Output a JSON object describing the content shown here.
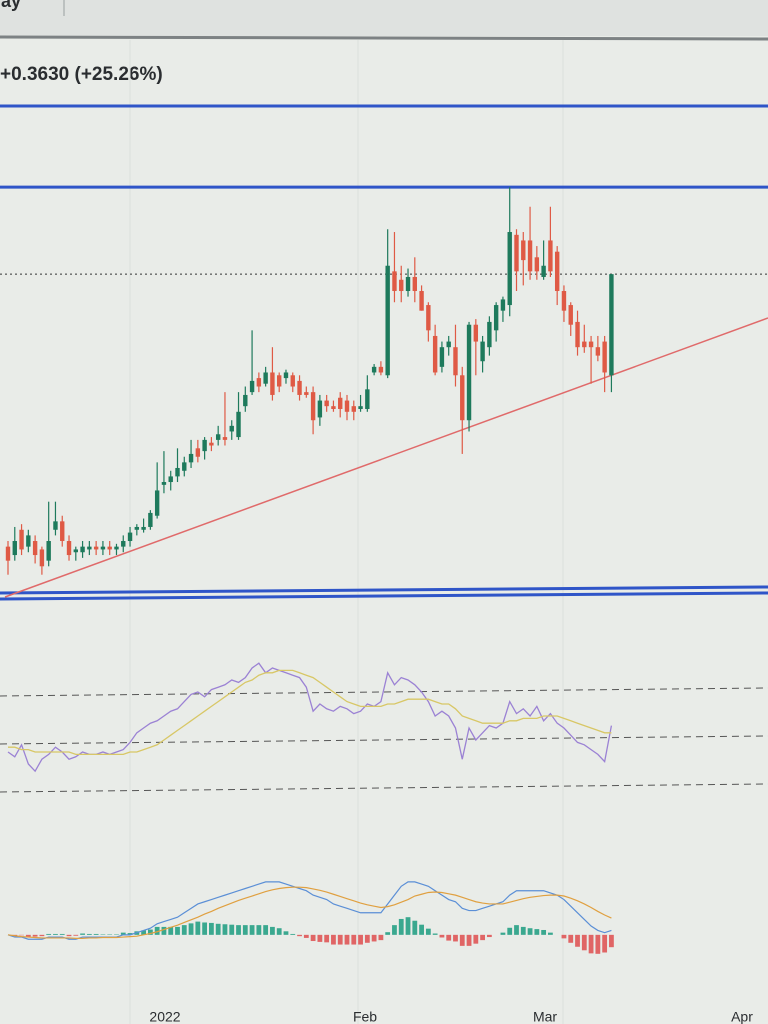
{
  "header": {
    "tab": "lay",
    "change": "+0.3630 (+25.26%)"
  },
  "chart_data": [
    {
      "type": "candlestick",
      "x_labels": [
        "2022",
        "Feb",
        "Mar",
        "Apr"
      ],
      "up_color": "#1e7a5c",
      "down_color": "#df5a45",
      "level_color": "#2f55c8",
      "levels": [
        2.11
      ],
      "ylim": [
        0.64,
        2.42
      ],
      "open": [
        0.83,
        0.8,
        0.89,
        0.83,
        0.85,
        0.82,
        0.78,
        0.89,
        0.92,
        0.85,
        0.81,
        0.81,
        0.82,
        0.83,
        0.82,
        0.83,
        0.82,
        0.83,
        0.85,
        0.89,
        0.89,
        0.9,
        0.94,
        1.05,
        1.06,
        1.08,
        1.1,
        1.13,
        1.18,
        1.17,
        1.2,
        1.21,
        1.22,
        1.24,
        1.22,
        1.33,
        1.38,
        1.43,
        1.41,
        1.45,
        1.44,
        1.43,
        1.44,
        1.42,
        1.38,
        1.38,
        1.29,
        1.35,
        1.33,
        1.36,
        1.35,
        1.33,
        1.32,
        1.32,
        1.45,
        1.47,
        1.44,
        1.81,
        1.78,
        1.74,
        1.79,
        1.74,
        1.69,
        1.58,
        1.47,
        1.54,
        1.54,
        1.44,
        1.28,
        1.62,
        1.49,
        1.54,
        1.6,
        1.67,
        1.69,
        1.94,
        1.92,
        1.92,
        1.86,
        1.79,
        1.92,
        1.88,
        1.74,
        1.69,
        1.63,
        1.56,
        1.56,
        1.54,
        1.56,
        1.44
      ],
      "close": [
        0.78,
        0.85,
        0.82,
        0.87,
        0.8,
        0.76,
        0.85,
        0.92,
        0.85,
        0.8,
        0.82,
        0.83,
        0.83,
        0.82,
        0.83,
        0.82,
        0.83,
        0.85,
        0.88,
        0.9,
        0.9,
        0.95,
        1.03,
        1.06,
        1.08,
        1.11,
        1.13,
        1.16,
        1.15,
        1.21,
        1.19,
        1.23,
        1.21,
        1.26,
        1.31,
        1.37,
        1.42,
        1.4,
        1.45,
        1.37,
        1.4,
        1.45,
        1.4,
        1.37,
        1.37,
        1.28,
        1.35,
        1.33,
        1.32,
        1.32,
        1.31,
        1.31,
        1.33,
        1.39,
        1.47,
        1.45,
        1.83,
        1.74,
        1.74,
        1.79,
        1.74,
        1.67,
        1.6,
        1.45,
        1.54,
        1.56,
        1.44,
        1.28,
        1.62,
        1.56,
        1.56,
        1.63,
        1.69,
        1.71,
        1.95,
        1.81,
        1.85,
        1.81,
        1.81,
        1.83,
        1.81,
        1.74,
        1.67,
        1.62,
        1.54,
        1.54,
        1.54,
        1.51,
        1.45,
        1.8
      ],
      "high": [
        0.85,
        0.9,
        0.91,
        0.89,
        0.87,
        0.83,
        0.99,
        0.99,
        0.94,
        0.87,
        0.83,
        0.85,
        0.85,
        0.85,
        0.85,
        0.85,
        0.84,
        0.87,
        0.9,
        0.91,
        0.93,
        0.96,
        1.13,
        1.17,
        1.1,
        1.18,
        1.15,
        1.21,
        1.21,
        1.22,
        1.22,
        1.26,
        1.38,
        1.28,
        1.38,
        1.4,
        1.6,
        1.45,
        1.47,
        1.54,
        1.45,
        1.46,
        1.45,
        1.44,
        1.4,
        1.4,
        1.37,
        1.37,
        1.35,
        1.38,
        1.37,
        1.35,
        1.37,
        1.44,
        1.48,
        1.49,
        1.96,
        1.95,
        1.83,
        1.82,
        1.86,
        1.76,
        1.7,
        1.62,
        1.56,
        1.58,
        1.62,
        1.47,
        1.63,
        1.64,
        1.58,
        1.65,
        1.7,
        1.72,
        2.11,
        1.96,
        1.95,
        2.04,
        1.9,
        1.92,
        2.04,
        1.9,
        1.76,
        1.7,
        1.67,
        1.62,
        1.58,
        1.58,
        1.58,
        1.8
      ],
      "low": [
        0.73,
        0.78,
        0.8,
        0.81,
        0.77,
        0.73,
        0.76,
        0.87,
        0.83,
        0.78,
        0.78,
        0.79,
        0.8,
        0.8,
        0.8,
        0.8,
        0.8,
        0.81,
        0.83,
        0.87,
        0.88,
        0.89,
        0.93,
        1.02,
        1.03,
        1.06,
        1.08,
        1.11,
        1.13,
        1.14,
        1.17,
        1.19,
        1.19,
        1.21,
        1.21,
        1.31,
        1.37,
        1.38,
        1.4,
        1.35,
        1.38,
        1.41,
        1.38,
        1.35,
        1.36,
        1.23,
        1.26,
        1.31,
        1.31,
        1.29,
        1.28,
        1.28,
        1.31,
        1.31,
        1.44,
        1.44,
        1.43,
        1.7,
        1.7,
        1.72,
        1.7,
        1.67,
        1.56,
        1.44,
        1.45,
        1.51,
        1.4,
        1.16,
        1.24,
        1.44,
        1.45,
        1.51,
        1.56,
        1.63,
        1.65,
        1.74,
        1.76,
        1.78,
        1.78,
        1.78,
        1.79,
        1.69,
        1.63,
        1.58,
        1.51,
        1.52,
        1.41,
        1.49,
        1.38,
        1.38
      ]
    },
    {
      "type": "line",
      "ylim": [
        20,
        100
      ],
      "levels": [
        70,
        50,
        30
      ],
      "series": [
        {
          "color": "#9b82d4",
          "values": [
            45,
            43,
            48,
            40,
            37,
            42,
            44,
            47,
            45,
            42,
            43,
            45,
            44,
            44,
            45,
            44,
            45,
            46,
            49,
            53,
            55,
            57,
            58,
            60,
            62,
            63,
            66,
            69,
            70,
            68,
            71,
            72,
            73,
            75,
            74,
            76,
            80,
            82,
            78,
            80,
            79,
            78,
            77,
            76,
            72,
            62,
            65,
            63,
            62,
            64,
            63,
            61,
            62,
            65,
            64,
            66,
            78,
            73,
            76,
            75,
            73,
            70,
            66,
            60,
            62,
            60,
            55,
            42,
            55,
            50,
            53,
            56,
            55,
            57,
            66,
            61,
            63,
            60,
            64,
            58,
            61,
            57,
            55,
            52,
            49,
            48,
            46,
            44,
            41,
            56
          ]
        },
        {
          "color": "#d8c766",
          "values": [
            47,
            47,
            46,
            46,
            45,
            45,
            45,
            45,
            45,
            45,
            44,
            44,
            44,
            44,
            44,
            44,
            44,
            44,
            45,
            45,
            46,
            47,
            48,
            50,
            52,
            54,
            56,
            58,
            60,
            62,
            64,
            66,
            68,
            70,
            72,
            74,
            75,
            77,
            78,
            78,
            79,
            79,
            79,
            78,
            77,
            76,
            74,
            72,
            70,
            68,
            66,
            65,
            64,
            64,
            64,
            64,
            65,
            65,
            66,
            67,
            67,
            67,
            67,
            66,
            65,
            65,
            63,
            60,
            59,
            58,
            57,
            57,
            57,
            57,
            58,
            58,
            59,
            59,
            59,
            60,
            60,
            60,
            59,
            58,
            57,
            56,
            55,
            54,
            53,
            53
          ]
        }
      ]
    },
    {
      "type": "macd",
      "ylim": [
        -0.125,
        0.19
      ],
      "up_color": "#3aa88f",
      "down_color": "#e06565",
      "series": [
        {
          "color": "#5b8fd6",
          "values": [
            0,
            -0.005,
            -0.005,
            -0.01,
            -0.01,
            -0.01,
            -0.005,
            -0.005,
            -0.005,
            -0.01,
            -0.01,
            -0.005,
            -0.005,
            -0.005,
            -0.005,
            -0.005,
            -0.005,
            0,
            0,
            0.005,
            0.01,
            0.015,
            0.025,
            0.03,
            0.035,
            0.04,
            0.05,
            0.06,
            0.07,
            0.075,
            0.08,
            0.085,
            0.09,
            0.095,
            0.1,
            0.105,
            0.11,
            0.115,
            0.12,
            0.12,
            0.12,
            0.115,
            0.11,
            0.105,
            0.1,
            0.09,
            0.085,
            0.08,
            0.07,
            0.065,
            0.06,
            0.055,
            0.05,
            0.05,
            0.05,
            0.05,
            0.07,
            0.09,
            0.11,
            0.12,
            0.12,
            0.115,
            0.11,
            0.1,
            0.09,
            0.08,
            0.075,
            0.06,
            0.055,
            0.055,
            0.06,
            0.065,
            0.07,
            0.075,
            0.09,
            0.1,
            0.1,
            0.1,
            0.1,
            0.1,
            0.095,
            0.09,
            0.08,
            0.065,
            0.05,
            0.035,
            0.02,
            0.01,
            0.005,
            0.01
          ]
        },
        {
          "color": "#e0a040",
          "values": [
            0,
            -0.002,
            -0.004,
            -0.005,
            -0.006,
            -0.007,
            -0.007,
            -0.007,
            -0.007,
            -0.007,
            -0.008,
            -0.008,
            -0.007,
            -0.007,
            -0.006,
            -0.006,
            -0.006,
            -0.005,
            -0.004,
            -0.003,
            0,
            0.003,
            0.007,
            0.012,
            0.017,
            0.022,
            0.028,
            0.034,
            0.04,
            0.047,
            0.053,
            0.06,
            0.066,
            0.072,
            0.078,
            0.083,
            0.088,
            0.093,
            0.098,
            0.102,
            0.105,
            0.107,
            0.108,
            0.108,
            0.107,
            0.104,
            0.101,
            0.097,
            0.092,
            0.087,
            0.082,
            0.077,
            0.072,
            0.068,
            0.065,
            0.062,
            0.064,
            0.068,
            0.074,
            0.08,
            0.088,
            0.092,
            0.096,
            0.097,
            0.096,
            0.093,
            0.09,
            0.085,
            0.08,
            0.075,
            0.072,
            0.07,
            0.07,
            0.07,
            0.074,
            0.078,
            0.082,
            0.085,
            0.087,
            0.089,
            0.09,
            0.09,
            0.088,
            0.083,
            0.077,
            0.07,
            0.062,
            0.053,
            0.045,
            0.038
          ]
        }
      ],
      "histogram": [
        0,
        -0.003,
        -0.001,
        -0.005,
        -0.004,
        -0.003,
        0.002,
        0.002,
        0.002,
        -0.003,
        -0.002,
        0.003,
        0.002,
        0.002,
        0.001,
        0.001,
        0.001,
        0.005,
        0.004,
        0.008,
        0.01,
        0.012,
        0.018,
        0.018,
        0.018,
        0.018,
        0.022,
        0.026,
        0.03,
        0.028,
        0.027,
        0.025,
        0.024,
        0.023,
        0.022,
        0.022,
        0.022,
        0.022,
        0.022,
        0.018,
        0.015,
        0.008,
        0.002,
        -0.003,
        -0.007,
        -0.014,
        -0.016,
        -0.017,
        -0.022,
        -0.022,
        -0.022,
        -0.022,
        -0.022,
        -0.018,
        -0.015,
        -0.012,
        0.006,
        0.022,
        0.036,
        0.04,
        0.032,
        0.023,
        0.014,
        0.003,
        -0.006,
        -0.013,
        -0.015,
        -0.025,
        -0.025,
        -0.02,
        -0.012,
        -0.005,
        0,
        0.005,
        0.016,
        0.022,
        0.018,
        0.015,
        0.013,
        0.011,
        0.005,
        0,
        -0.008,
        -0.018,
        -0.027,
        -0.035,
        -0.042,
        -0.043,
        -0.04,
        -0.028
      ]
    }
  ]
}
